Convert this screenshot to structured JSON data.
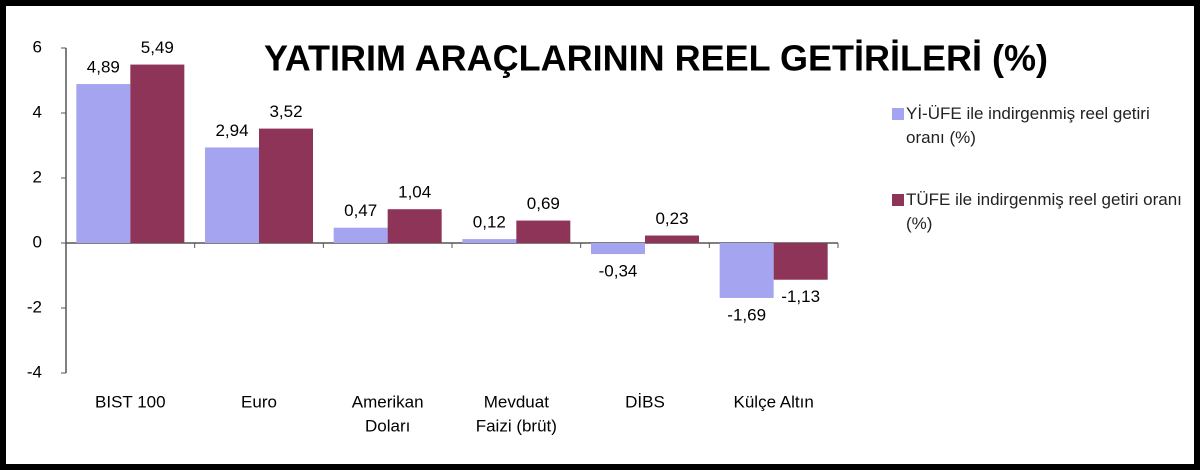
{
  "chart_data": {
    "type": "bar",
    "title": "YATIRIM ARAÇLARININ REEL GETİRİLERİ (%)",
    "categories": [
      [
        "BIST 100"
      ],
      [
        "Euro"
      ],
      [
        "Amerikan",
        "Doları"
      ],
      [
        "Mevduat",
        "Faizi (brüt)"
      ],
      [
        "DİBS"
      ],
      [
        "Külçe Altın"
      ]
    ],
    "series": [
      {
        "name": "Yİ-ÜFE ile indirgenmiş reel getiri oranı (%)",
        "color": "#a4a4f0",
        "values": [
          4.89,
          2.94,
          0.47,
          0.12,
          -0.34,
          -1.69
        ],
        "value_labels": [
          "4,89",
          "2,94",
          "0,47",
          "0,12",
          "-0,34",
          "-1,69"
        ]
      },
      {
        "name": "TÜFE ile indirgenmiş reel getiri oranı (%)",
        "color": "#8e3459",
        "values": [
          5.49,
          3.52,
          1.04,
          0.69,
          0.23,
          -1.13
        ],
        "value_labels": [
          "5,49",
          "3,52",
          "1,04",
          "0,69",
          "0,23",
          "-1,13"
        ]
      }
    ],
    "ylim": [
      -4,
      6
    ],
    "yticks": [
      -4,
      -2,
      0,
      2,
      4,
      6
    ],
    "grid": false,
    "legend": "right"
  }
}
